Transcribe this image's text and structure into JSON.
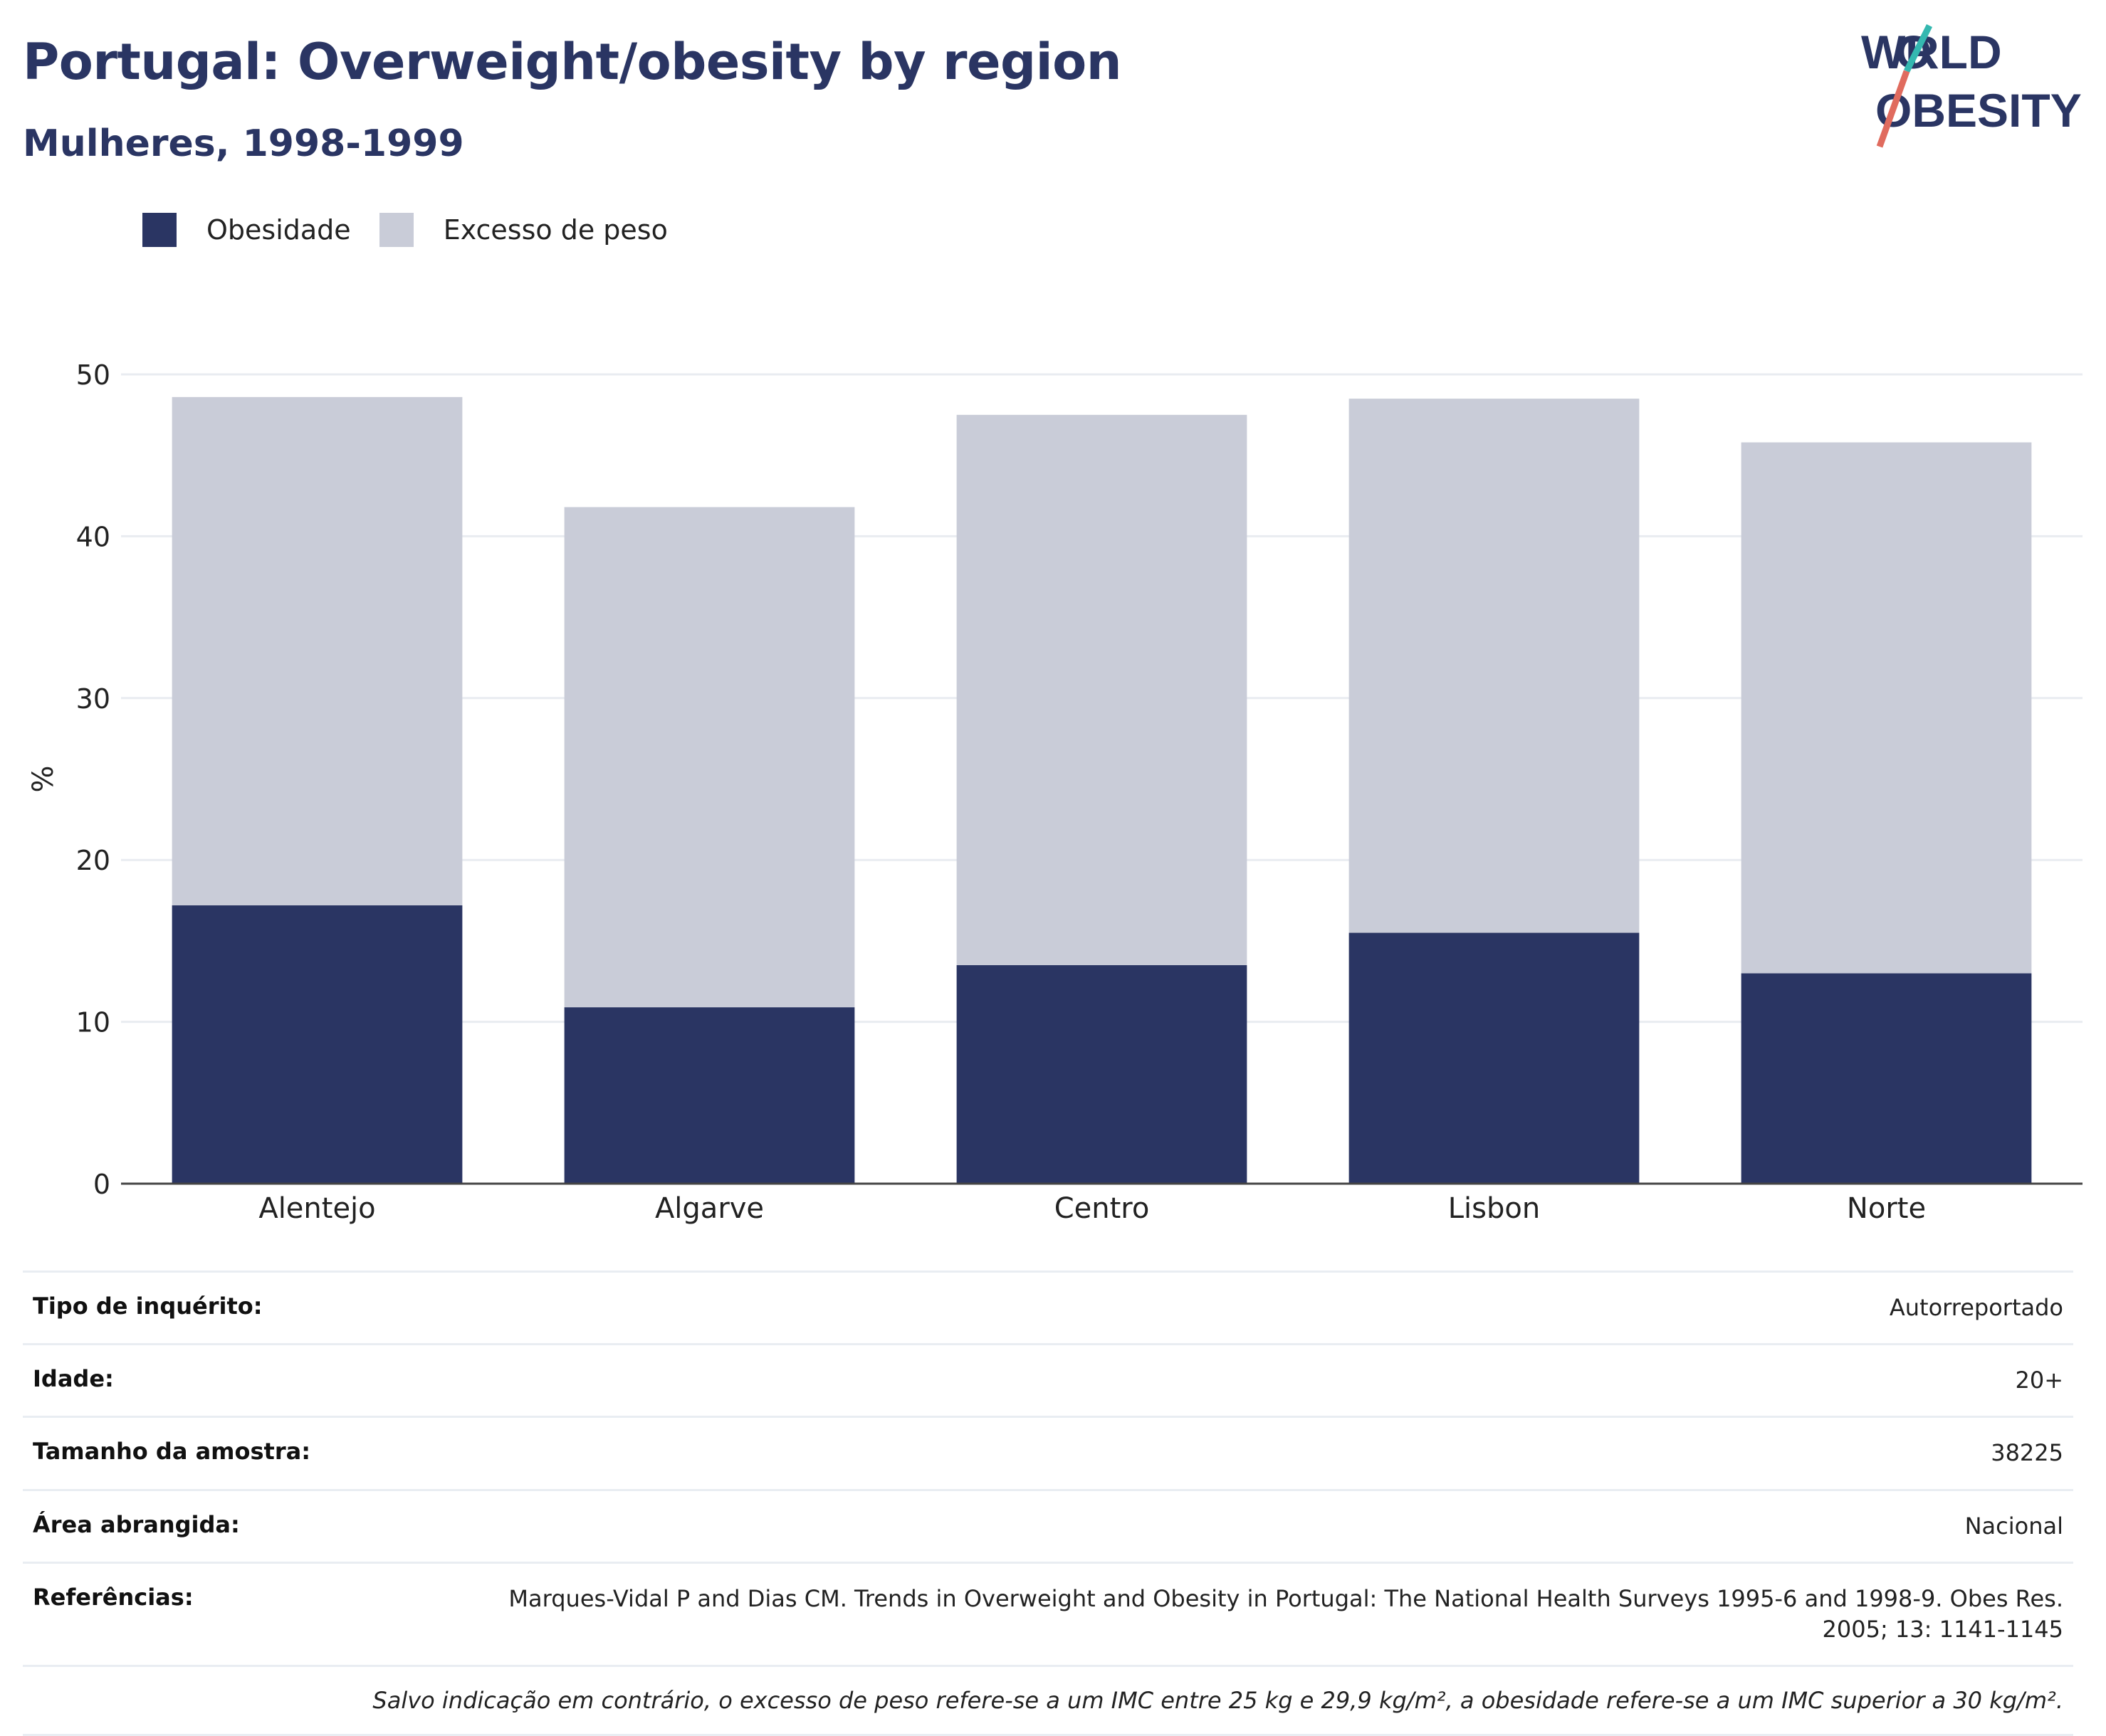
{
  "header": {
    "title": "Portugal: Overweight/obesity by region",
    "subtitle": "Mulheres, 1998-1999"
  },
  "logo": {
    "line1": "WORLD",
    "line2": "OBESITY"
  },
  "legend": {
    "items": [
      {
        "label": "Obesidade",
        "color": "#2a3563"
      },
      {
        "label": "Excesso de peso",
        "color": "#c9ccd8"
      }
    ]
  },
  "chart_data": {
    "type": "bar",
    "stacked": true,
    "categories": [
      "Alentejo",
      "Algarve",
      "Centro",
      "Lisbon",
      "Norte"
    ],
    "series": [
      {
        "name": "Obesidade",
        "color": "#2a3563",
        "values": [
          17.2,
          10.9,
          13.5,
          15.5,
          13.0
        ]
      },
      {
        "name": "Excesso de peso",
        "color": "#c9ccd8",
        "values": [
          31.4,
          30.9,
          34.0,
          33.0,
          32.8
        ]
      }
    ],
    "ylabel": "%",
    "ylim": [
      0,
      50
    ],
    "yticks": [
      0,
      10,
      20,
      30,
      40,
      50
    ],
    "grid": true,
    "legend_position": "top-left"
  },
  "info": {
    "rows": [
      {
        "key": "Tipo de inquérito:",
        "value": "Autorreportado"
      },
      {
        "key": "Idade:",
        "value": "20+"
      },
      {
        "key": "Tamanho da amostra:",
        "value": "38225"
      },
      {
        "key": "Área abrangida:",
        "value": "Nacional"
      },
      {
        "key": "Referências:",
        "value": "Marques-Vidal P and Dias CM. Trends in Overweight and Obesity in Portugal: The National Health Surveys 1995-6 and 1998-9. Obes Res. 2005; 13: 1141-1145"
      }
    ],
    "note": "Salvo indicação em contrário, o excesso de peso refere-se a um IMC entre 25 kg e 29,9 kg/m², a obesidade refere-se a um IMC superior a 30 kg/m²."
  }
}
